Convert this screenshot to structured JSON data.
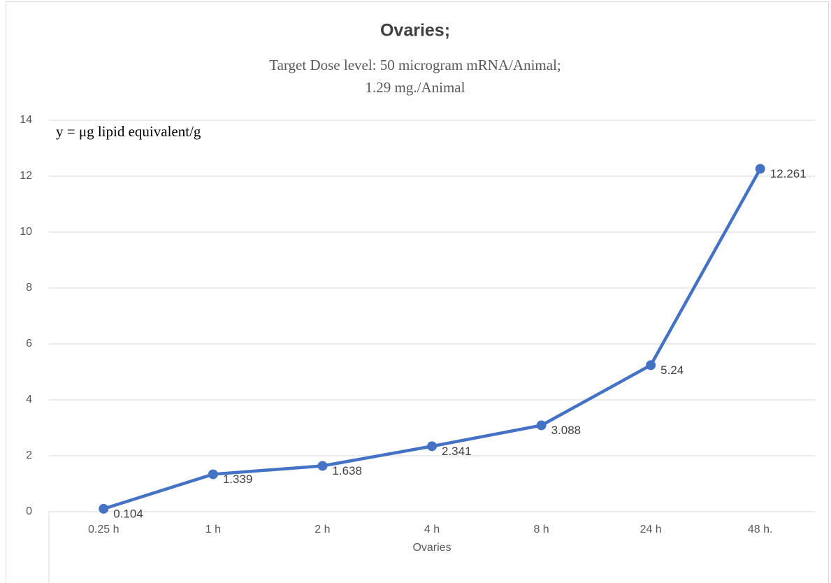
{
  "chart_data": {
    "type": "line",
    "title": "Ovaries;",
    "subtitle": [
      "Target Dose level: 50 microgram mRNA/Animal;",
      "1.29 mg./Animal"
    ],
    "annotation": "y = μg lipid equivalent/g",
    "x_label": "Ovaries",
    "categories": [
      "0.25 h",
      "1 h",
      "2 h",
      "4 h",
      "8 h",
      "24 h",
      "48 h."
    ],
    "series": [
      {
        "name": "Ovaries",
        "color": "#4472c4",
        "values": [
          0.104,
          1.339,
          1.638,
          2.341,
          3.088,
          5.24,
          12.261
        ]
      }
    ],
    "ylim": [
      0,
      14
    ],
    "yticks": [
      0,
      2,
      4,
      6,
      8,
      10,
      12,
      14
    ],
    "grid": true
  }
}
